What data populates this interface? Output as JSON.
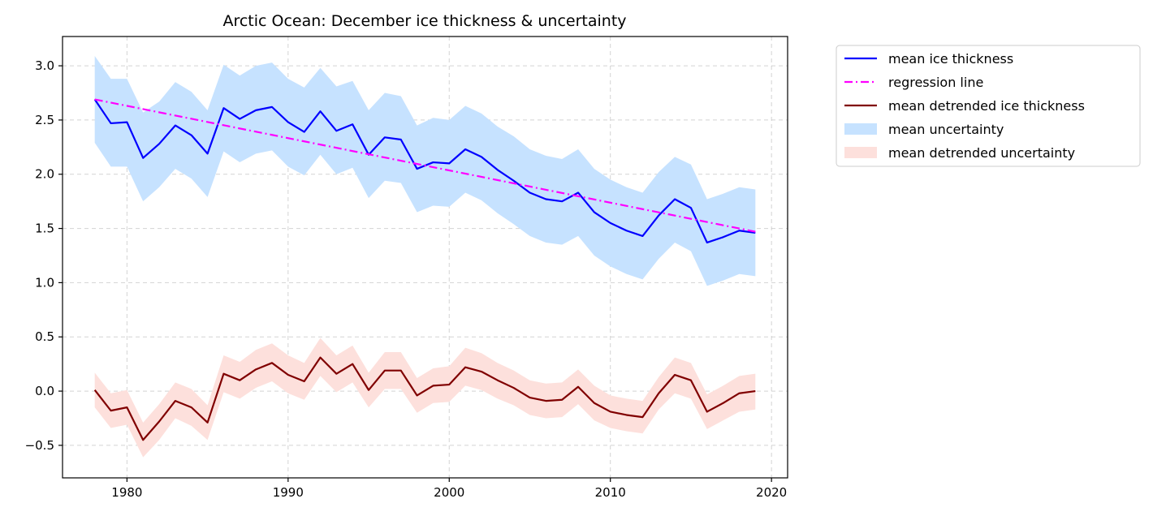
{
  "chart_data": {
    "type": "line",
    "title": "Arctic Ocean: December ice thickness & uncertainty",
    "xlabel": "",
    "ylabel": "",
    "x": [
      1978,
      1979,
      1980,
      1981,
      1982,
      1983,
      1984,
      1985,
      1986,
      1987,
      1988,
      1989,
      1990,
      1991,
      1992,
      1993,
      1994,
      1995,
      1996,
      1997,
      1998,
      1999,
      2000,
      2001,
      2002,
      2003,
      2004,
      2005,
      2006,
      2007,
      2008,
      2009,
      2010,
      2011,
      2012,
      2013,
      2014,
      2015,
      2016,
      2017,
      2018,
      2019
    ],
    "xlim": [
      1976,
      2021
    ],
    "ylim": [
      -0.8,
      3.27
    ],
    "xticks": [
      1980,
      1990,
      2000,
      2010,
      2020
    ],
    "yticks": [
      -0.5,
      0.0,
      0.5,
      1.0,
      1.5,
      2.0,
      2.5,
      3.0
    ],
    "ytick_labels": [
      "−0.5",
      "0.0",
      "0.5",
      "1.0",
      "1.5",
      "2.0",
      "2.5",
      "3.0"
    ],
    "grid": true,
    "legend_position": "outside-upper-right",
    "series": [
      {
        "name": "mean ice thickness",
        "kind": "line",
        "style": "solid",
        "color": "#0000ff",
        "values": [
          2.69,
          2.47,
          2.48,
          2.15,
          2.28,
          2.45,
          2.36,
          2.19,
          2.61,
          2.51,
          2.59,
          2.62,
          2.48,
          2.39,
          2.58,
          2.4,
          2.46,
          2.18,
          2.34,
          2.32,
          2.05,
          2.11,
          2.1,
          2.23,
          2.16,
          2.04,
          1.94,
          1.83,
          1.77,
          1.75,
          1.83,
          1.65,
          1.55,
          1.48,
          1.43,
          1.62,
          1.77,
          1.69,
          1.37,
          1.42,
          1.48,
          1.46
        ]
      },
      {
        "name": "regression line",
        "kind": "line",
        "style": "dashdot",
        "color": "#ff00ff",
        "x": [
          1978,
          2019
        ],
        "values": [
          2.69,
          1.47
        ]
      },
      {
        "name": "mean detrended ice thickness",
        "kind": "line",
        "style": "solid",
        "color": "#800000",
        "values": [
          0.01,
          -0.18,
          -0.15,
          -0.45,
          -0.28,
          -0.09,
          -0.15,
          -0.29,
          0.16,
          0.1,
          0.2,
          0.26,
          0.15,
          0.09,
          0.31,
          0.16,
          0.25,
          0.01,
          0.19,
          0.19,
          -0.04,
          0.05,
          0.06,
          0.22,
          0.18,
          0.1,
          0.03,
          -0.06,
          -0.09,
          -0.08,
          0.04,
          -0.11,
          -0.19,
          -0.22,
          -0.24,
          -0.02,
          0.15,
          0.1,
          -0.19,
          -0.11,
          -0.02,
          0.0
        ]
      },
      {
        "name": "mean uncertainty",
        "kind": "band",
        "color": "#c6e2ff",
        "upper": [
          3.09,
          2.88,
          2.88,
          2.57,
          2.67,
          2.85,
          2.76,
          2.59,
          3.01,
          2.91,
          3.0,
          3.03,
          2.88,
          2.8,
          2.98,
          2.81,
          2.86,
          2.59,
          2.75,
          2.72,
          2.45,
          2.52,
          2.5,
          2.63,
          2.56,
          2.44,
          2.35,
          2.23,
          2.17,
          2.14,
          2.23,
          2.05,
          1.95,
          1.88,
          1.83,
          2.02,
          2.16,
          2.09,
          1.77,
          1.82,
          1.88,
          1.86
        ],
        "lower": [
          2.29,
          2.07,
          2.07,
          1.75,
          1.88,
          2.05,
          1.96,
          1.79,
          2.21,
          2.11,
          2.19,
          2.22,
          2.07,
          1.99,
          2.18,
          2.0,
          2.06,
          1.78,
          1.94,
          1.92,
          1.65,
          1.71,
          1.7,
          1.83,
          1.76,
          1.64,
          1.54,
          1.43,
          1.37,
          1.35,
          1.43,
          1.25,
          1.15,
          1.08,
          1.03,
          1.22,
          1.37,
          1.29,
          0.97,
          1.02,
          1.08,
          1.06
        ]
      },
      {
        "name": "mean detrended uncertainty",
        "kind": "band",
        "color": "#fde0dc",
        "upper": [
          0.17,
          -0.02,
          0.01,
          -0.29,
          -0.12,
          0.08,
          0.02,
          -0.13,
          0.33,
          0.27,
          0.38,
          0.44,
          0.33,
          0.26,
          0.49,
          0.33,
          0.42,
          0.17,
          0.36,
          0.36,
          0.12,
          0.21,
          0.23,
          0.4,
          0.35,
          0.26,
          0.19,
          0.1,
          0.07,
          0.08,
          0.2,
          0.05,
          -0.04,
          -0.07,
          -0.09,
          0.13,
          0.31,
          0.26,
          -0.03,
          0.05,
          0.14,
          0.16
        ],
        "lower": [
          -0.15,
          -0.34,
          -0.31,
          -0.61,
          -0.45,
          -0.25,
          -0.32,
          -0.45,
          -0.01,
          -0.07,
          0.03,
          0.09,
          -0.02,
          -0.08,
          0.14,
          -0.01,
          0.08,
          -0.15,
          0.02,
          0.02,
          -0.2,
          -0.11,
          -0.1,
          0.05,
          0.01,
          -0.07,
          -0.13,
          -0.22,
          -0.25,
          -0.24,
          -0.12,
          -0.27,
          -0.34,
          -0.37,
          -0.39,
          -0.17,
          -0.02,
          -0.07,
          -0.35,
          -0.27,
          -0.19,
          -0.17
        ]
      }
    ]
  },
  "legend": {
    "items": [
      {
        "label": "mean ice thickness",
        "type": "line",
        "style": "solid",
        "color": "#0000ff"
      },
      {
        "label": "regression line",
        "type": "line",
        "style": "dashdot",
        "color": "#ff00ff"
      },
      {
        "label": "mean detrended ice thickness",
        "type": "line",
        "style": "solid",
        "color": "#800000"
      },
      {
        "label": "mean uncertainty",
        "type": "patch",
        "color": "#c6e2ff"
      },
      {
        "label": "mean detrended uncertainty",
        "type": "patch",
        "color": "#fde0dc"
      }
    ]
  }
}
